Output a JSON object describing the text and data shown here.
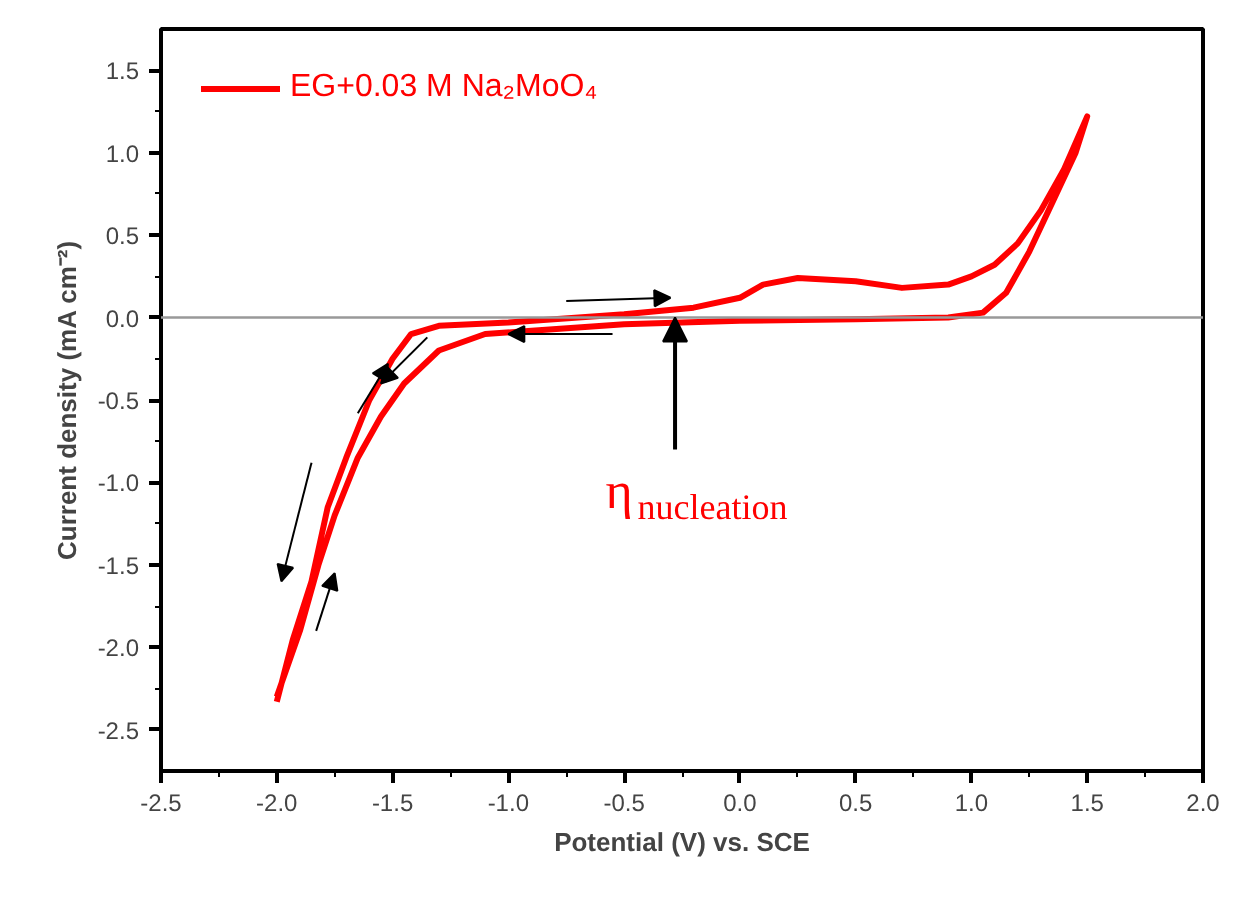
{
  "chart_data": {
    "type": "line",
    "xlabel": "Potential (V) vs. SCE",
    "ylabel": "Current density (mA cm⁻²)",
    "xlim": [
      -2.5,
      2.0
    ],
    "ylim": [
      -2.75,
      1.75
    ],
    "xticks": [
      {
        "value": -2.5,
        "label": "-2.5"
      },
      {
        "value": -2.0,
        "label": "-2.0"
      },
      {
        "value": -1.5,
        "label": "-1.5"
      },
      {
        "value": -1.0,
        "label": "-1.0"
      },
      {
        "value": -0.5,
        "label": "-0.5"
      },
      {
        "value": 0,
        "label": "0.0"
      },
      {
        "value": 0.5,
        "label": "0.5"
      },
      {
        "value": 1.0,
        "label": "1.0"
      },
      {
        "value": 1.5,
        "label": "1.5"
      },
      {
        "value": 2.0,
        "label": "2.0"
      }
    ],
    "yticks": [
      {
        "value": -2.5,
        "label": "-2.5"
      },
      {
        "value": -2.0,
        "label": "-2.0"
      },
      {
        "value": -1.5,
        "label": "-1.5"
      },
      {
        "value": -1.0,
        "label": "-1.0"
      },
      {
        "value": -0.5,
        "label": "-0.5"
      },
      {
        "value": 0,
        "label": "0.0"
      },
      {
        "value": 0.5,
        "label": "0.5"
      },
      {
        "value": 1.0,
        "label": "1.0"
      },
      {
        "value": 1.5,
        "label": "1.5"
      }
    ],
    "series": [
      {
        "name": "EG+0.03 M Na₂MoO₄",
        "color": "#ff0000",
        "x": [
          -2.0,
          -1.93,
          -1.85,
          -1.78,
          -1.7,
          -1.6,
          -1.5,
          -1.42,
          -1.3,
          -1.0,
          -0.5,
          -0.2,
          0.0,
          0.1,
          0.25,
          0.5,
          0.7,
          0.9,
          1.0,
          1.1,
          1.2,
          1.3,
          1.4,
          1.5,
          1.45,
          1.35,
          1.25,
          1.15,
          1.05,
          0.9,
          0.5,
          0.0,
          -0.5,
          -0.9,
          -1.1,
          -1.3,
          -1.45,
          -1.55,
          -1.65,
          -1.75,
          -1.82,
          -1.9,
          -2.0
        ],
        "values": [
          -2.33,
          -1.95,
          -1.6,
          -1.15,
          -0.85,
          -0.5,
          -0.25,
          -0.1,
          -0.05,
          -0.03,
          0.02,
          0.06,
          0.12,
          0.2,
          0.24,
          0.22,
          0.18,
          0.2,
          0.25,
          0.32,
          0.45,
          0.65,
          0.9,
          1.22,
          1.0,
          0.7,
          0.4,
          0.15,
          0.03,
          0.0,
          -0.01,
          -0.02,
          -0.04,
          -0.08,
          -0.1,
          -0.2,
          -0.4,
          -0.6,
          -0.85,
          -1.2,
          -1.5,
          -1.9,
          -2.3
        ]
      }
    ],
    "ref_lines": [
      {
        "axis": "y",
        "value": 0,
        "color": "#999999"
      }
    ],
    "annotations": [
      {
        "text": "η$_{nucleation}$",
        "x": -0.28,
        "y": 0
      }
    ],
    "legend": "top left",
    "line_style": "solid",
    "marker": "none",
    "grid": false
  }
}
